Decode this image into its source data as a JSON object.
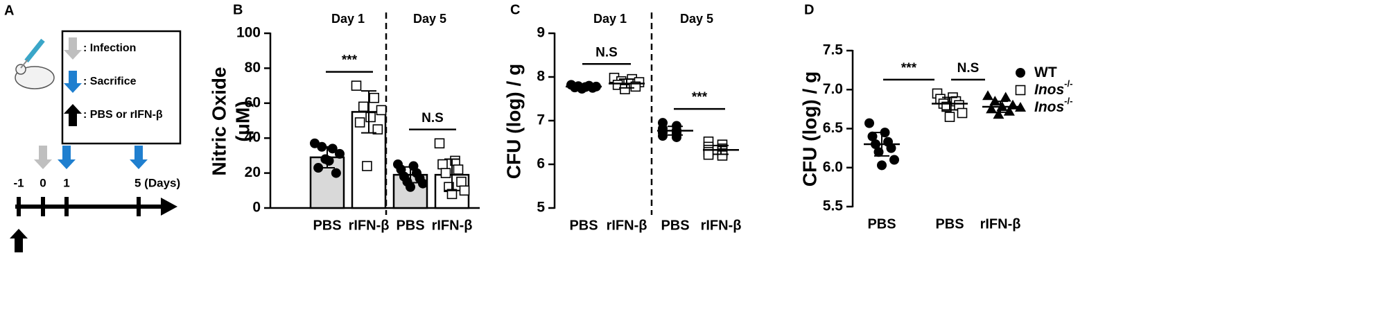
{
  "schematic": {
    "panel_label": "A",
    "legend": [
      ": Infection",
      ": Sacrifice",
      ": PBS or rIFN-β"
    ],
    "timeline": [
      "-1",
      "0",
      "1",
      "5 (Days)"
    ]
  },
  "chart_data": [
    {
      "type": "bar",
      "panel_label": "B",
      "ylabel": [
        "Nitric Oxide",
        "(μM)"
      ],
      "group_labels": [
        "Day 1",
        "Day 5"
      ],
      "categories": [
        "PBS",
        "rIFN-β",
        "PBS",
        "rIFN-β"
      ],
      "values": [
        29,
        55,
        19,
        19
      ],
      "errors": [
        6,
        12,
        4.5,
        9
      ],
      "points": [
        [
          37,
          34,
          35,
          31,
          27,
          23,
          20,
          28
        ],
        [
          70,
          63,
          58,
          56,
          52,
          49,
          45,
          24
        ],
        [
          25,
          24,
          22,
          20,
          18,
          17,
          15,
          14,
          12
        ],
        [
          37,
          27,
          25,
          22,
          20,
          15,
          12,
          10,
          8
        ]
      ],
      "markers": [
        "circle",
        "square",
        "circle",
        "square"
      ],
      "bar_colors": [
        "#d9d9d9",
        "#ffffff",
        "#d9d9d9",
        "#ffffff"
      ],
      "annotations": [
        "***",
        "N.S"
      ],
      "ylim": [
        0,
        100
      ],
      "yticks": [
        0,
        20,
        40,
        60,
        80,
        100
      ]
    },
    {
      "type": "dot",
      "panel_label": "C",
      "ylabel": "CFU (log) / g",
      "group_labels": [
        "Day 1",
        "Day 5"
      ],
      "categories": [
        "PBS",
        "rIFN-β",
        "PBS",
        "rIFN-β"
      ],
      "values": [
        7.78,
        7.85,
        6.77,
        6.33
      ],
      "errors": [
        0.05,
        0.1,
        0.1,
        0.1
      ],
      "points": [
        [
          7.82,
          7.8,
          7.79,
          7.78,
          7.77,
          7.76,
          7.75,
          7.73
        ],
        [
          7.98,
          7.95,
          7.9,
          7.88,
          7.85,
          7.82,
          7.78,
          7.72
        ],
        [
          6.95,
          6.88,
          6.82,
          6.78,
          6.76,
          6.74,
          6.72,
          6.7,
          6.65,
          6.62
        ],
        [
          6.52,
          6.45,
          6.4,
          6.36,
          6.33,
          6.3,
          6.28,
          6.25,
          6.22,
          6.2
        ]
      ],
      "markers": [
        "circle",
        "square",
        "circle",
        "square"
      ],
      "annotations": [
        "N.S",
        "***"
      ],
      "ylim": [
        5,
        9
      ],
      "yticks": [
        5,
        6,
        7,
        8,
        9
      ]
    },
    {
      "type": "dot",
      "panel_label": "D",
      "ylabel": "CFU (log) / g",
      "categories": [
        "PBS",
        "PBS",
        "rIFN-β"
      ],
      "values": [
        6.3,
        6.82,
        6.78
      ],
      "errors": [
        0.15,
        0.08,
        0.07
      ],
      "points": [
        [
          6.57,
          6.45,
          6.4,
          6.33,
          6.3,
          6.25,
          6.2,
          6.1,
          6.03
        ],
        [
          6.95,
          6.9,
          6.88,
          6.85,
          6.82,
          6.8,
          6.78,
          6.7,
          6.65
        ],
        [
          6.92,
          6.9,
          6.85,
          6.8,
          6.78,
          6.75,
          6.72,
          6.68
        ]
      ],
      "markers": [
        "circle",
        "square",
        "triangle"
      ],
      "legend": [
        {
          "name": "WT"
        },
        {
          "name": "Inos",
          "sup": "-/-"
        },
        {
          "name": "Inos",
          "sup": "-/-"
        }
      ],
      "annotations": [
        "***",
        "N.S"
      ],
      "ylim": [
        5.5,
        7.5
      ],
      "yticks": [
        5.5,
        {
          "value": 6,
          "label": "6.0"
        },
        6.5,
        {
          "value": 7,
          "label": "7.0"
        },
        7.5
      ]
    }
  ]
}
